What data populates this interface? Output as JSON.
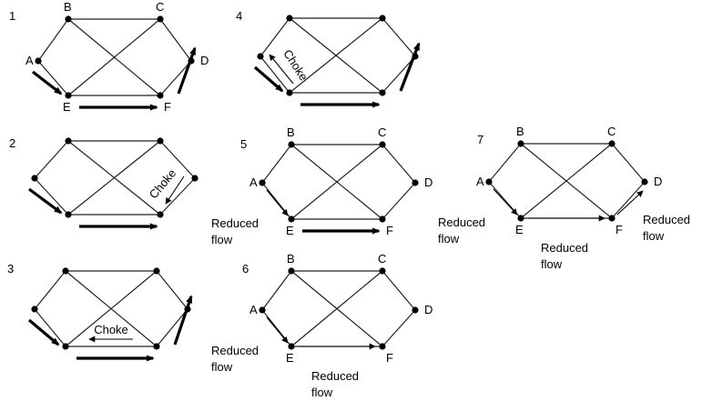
{
  "panels": [
    {
      "id": "1",
      "number": "1",
      "node_labels": {
        "A": "A",
        "B": "B",
        "C": "C",
        "D": "D",
        "E": "E",
        "F": "F"
      },
      "flows": [
        {
          "from": "A",
          "to": "E",
          "style": "thick"
        },
        {
          "from": "E",
          "to": "F",
          "style": "thick"
        },
        {
          "from": "F",
          "to": "D",
          "style": "thick"
        }
      ],
      "notes": []
    },
    {
      "id": "2",
      "number": "2",
      "node_labels": {},
      "flows": [
        {
          "from": "A",
          "to": "E",
          "style": "thick"
        },
        {
          "from": "E",
          "to": "F",
          "style": "thick"
        },
        {
          "from": "D",
          "to": "F",
          "style": "thin",
          "label": "Choke"
        }
      ],
      "notes": []
    },
    {
      "id": "3",
      "number": "3",
      "node_labels": {},
      "flows": [
        {
          "from": "A",
          "to": "E",
          "style": "thick"
        },
        {
          "from": "E",
          "to": "F",
          "style": "thick"
        },
        {
          "from": "F",
          "to": "D",
          "style": "thick"
        },
        {
          "from": "F",
          "to": "E",
          "style": "thin",
          "label": "Choke"
        }
      ],
      "notes": []
    },
    {
      "id": "4",
      "number": "4",
      "node_labels": {},
      "flows": [
        {
          "from": "A",
          "to": "E",
          "style": "thick"
        },
        {
          "from": "E",
          "to": "F",
          "style": "thick"
        },
        {
          "from": "F",
          "to": "D",
          "style": "thick"
        },
        {
          "from": "E",
          "to": "A",
          "style": "thin",
          "label": "Choke"
        }
      ],
      "notes": []
    },
    {
      "id": "5",
      "number": "5",
      "node_labels": {
        "A": "A",
        "B": "B",
        "C": "C",
        "D": "D",
        "E": "E",
        "F": "F"
      },
      "flows": [
        {
          "from": "A",
          "to": "E",
          "style": "thin"
        },
        {
          "from": "E",
          "to": "F",
          "style": "thick"
        }
      ],
      "notes": [
        {
          "text": [
            "Reduced",
            "flow"
          ],
          "anchor": "A-E"
        }
      ]
    },
    {
      "id": "6",
      "number": "6",
      "node_labels": {
        "A": "A",
        "B": "B",
        "C": "C",
        "D": "D",
        "E": "E",
        "F": "F"
      },
      "flows": [
        {
          "from": "A",
          "to": "E",
          "style": "thin"
        },
        {
          "from": "E",
          "to": "F",
          "style": "thin"
        }
      ],
      "notes": [
        {
          "text": [
            "Reduced",
            "flow"
          ],
          "anchor": "A-E"
        },
        {
          "text": [
            "Reduced",
            "flow"
          ],
          "anchor": "E-F"
        }
      ]
    },
    {
      "id": "7",
      "number": "7",
      "node_labels": {
        "A": "A",
        "B": "B",
        "C": "C",
        "D": "D",
        "E": "E",
        "F": "F"
      },
      "flows": [
        {
          "from": "A",
          "to": "E",
          "style": "thin"
        },
        {
          "from": "E",
          "to": "F",
          "style": "thin"
        },
        {
          "from": "F",
          "to": "D",
          "style": "thin"
        }
      ],
      "notes": [
        {
          "text": [
            "Reduced",
            "flow"
          ],
          "anchor": "A-E"
        },
        {
          "text": [
            "Reduced",
            "flow"
          ],
          "anchor": "E-F"
        },
        {
          "text": [
            "Reduced",
            "flow"
          ],
          "anchor": "F-D"
        }
      ]
    }
  ]
}
